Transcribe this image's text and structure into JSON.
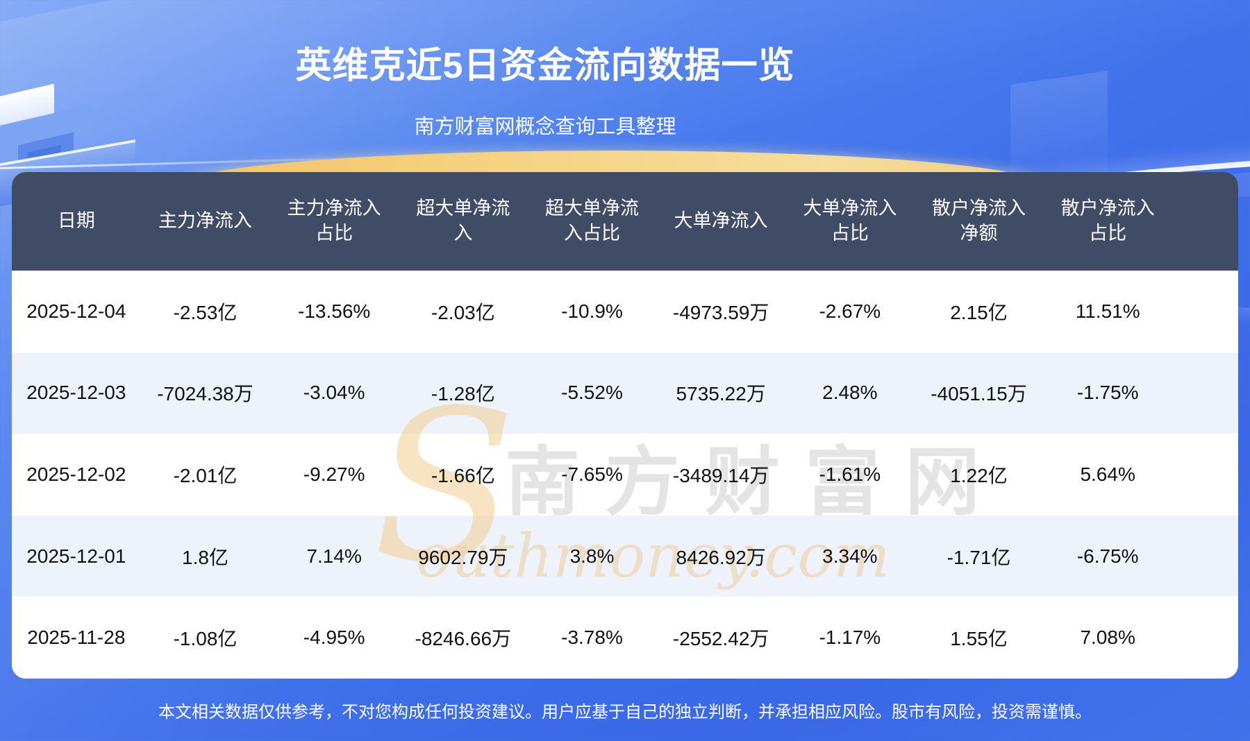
{
  "chart_data": {
    "type": "table",
    "title": "英维克近5日资金流向数据一览",
    "subtitle": "南方财富网概念查询工具整理",
    "columns": [
      "日期",
      "主力净流入",
      "主力净流入占比",
      "超大单净流入",
      "超大单净流入占比",
      "大单净流入",
      "大单净流入占比",
      "散户净流入净额",
      "散户净流入占比"
    ],
    "rows": [
      [
        "2025-12-04",
        "-2.53亿",
        "-13.56%",
        "-2.03亿",
        "-10.9%",
        "-4973.59万",
        "-2.67%",
        "2.15亿",
        "11.51%"
      ],
      [
        "2025-12-03",
        "-7024.38万",
        "-3.04%",
        "-1.28亿",
        "-5.52%",
        "5735.22万",
        "2.48%",
        "-4051.15万",
        "-1.75%"
      ],
      [
        "2025-12-02",
        "-2.01亿",
        "-9.27%",
        "-1.66亿",
        "-7.65%",
        "-3489.14万",
        "-1.61%",
        "1.22亿",
        "5.64%"
      ],
      [
        "2025-12-01",
        "1.8亿",
        "7.14%",
        "9602.79万",
        "3.8%",
        "8426.92万",
        "3.34%",
        "-1.71亿",
        "-6.75%"
      ],
      [
        "2025-11-28",
        "-1.08亿",
        "-4.95%",
        "-8246.66万",
        "-3.78%",
        "-2552.42万",
        "-1.17%",
        "1.55亿",
        "7.08%"
      ]
    ],
    "layout": {
      "row_stripe_colors": [
        "#EDF2FB",
        "#FFFFFF"
      ],
      "header_bg": "#404C66",
      "grid": "off"
    }
  },
  "watermark": {
    "initial": "S",
    "brand_chars": "南方财富网",
    "script": "outhmoney.com"
  },
  "footer": {
    "disclaimer": "本文相关数据仅供参考，不对您构成任何投资建议。用户应基于自己的独立判断，并承担相应风险。股市有风险，投资需谨慎。"
  },
  "colors": {
    "background_top": "#78A3F5",
    "background_bottom": "#3A68E8",
    "header_bg": "#404C66",
    "row_alt": "#EDF2FB",
    "accent_gold": "#F3C466",
    "text_body": "#111111",
    "text_header": "#FFFFFF"
  }
}
